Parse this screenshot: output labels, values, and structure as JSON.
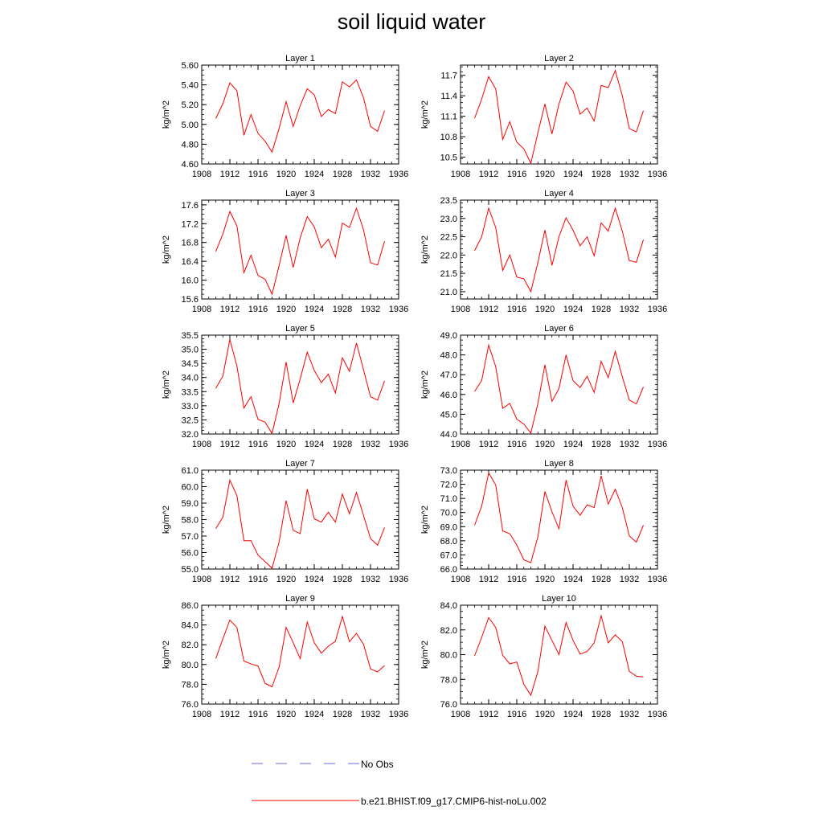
{
  "title": "soil liquid water",
  "chart_data": [
    {
      "type": "line",
      "title": "Layer 1",
      "ylabel": "kg/m^2",
      "xlim": [
        1908,
        1936
      ],
      "ylim": [
        4.6,
        5.6
      ],
      "xticks": [
        1908,
        1912,
        1916,
        1920,
        1924,
        1928,
        1932,
        1936
      ],
      "yticks": [
        "4.60",
        "4.80",
        "5.00",
        "5.20",
        "5.40",
        "5.60"
      ],
      "x": [
        1910,
        1911,
        1912,
        1913,
        1914,
        1915,
        1916,
        1917,
        1918,
        1919,
        1920,
        1921,
        1922,
        1923,
        1924,
        1925,
        1926,
        1927,
        1928,
        1929,
        1930,
        1931,
        1932,
        1933,
        1934
      ],
      "series": [
        {
          "name": "b.e21.BHIST.f09_g17.CMIP6-hist-noLu.002",
          "values": [
            5.06,
            5.21,
            5.42,
            5.34,
            4.89,
            5.1,
            4.91,
            4.83,
            4.72,
            4.96,
            5.23,
            4.98,
            5.19,
            5.36,
            5.3,
            5.08,
            5.15,
            5.11,
            5.43,
            5.38,
            5.45,
            5.27,
            4.98,
            4.93,
            5.14
          ]
        }
      ]
    },
    {
      "type": "line",
      "title": "Layer 2",
      "ylabel": "kg/m^2",
      "xlim": [
        1908,
        1936
      ],
      "ylim": [
        10.4,
        11.85
      ],
      "xticks": [
        1908,
        1912,
        1916,
        1920,
        1924,
        1928,
        1932,
        1936
      ],
      "yticks": [
        "10.5",
        "10.8",
        "11.1",
        "11.4",
        "11.7"
      ],
      "x": [
        1910,
        1911,
        1912,
        1913,
        1914,
        1915,
        1916,
        1917,
        1918,
        1919,
        1920,
        1921,
        1922,
        1923,
        1924,
        1925,
        1926,
        1927,
        1928,
        1929,
        1930,
        1931,
        1932,
        1933,
        1934
      ],
      "series": [
        {
          "name": "b.e21.BHIST.f09_g17.CMIP6-hist-noLu.002",
          "values": [
            11.07,
            11.35,
            11.68,
            11.5,
            10.76,
            11.02,
            10.72,
            10.62,
            10.41,
            10.86,
            11.28,
            10.84,
            11.28,
            11.6,
            11.47,
            11.13,
            11.22,
            11.03,
            11.55,
            11.52,
            11.77,
            11.4,
            10.92,
            10.87,
            11.18
          ]
        }
      ]
    },
    {
      "type": "line",
      "title": "Layer 3",
      "ylabel": "kg/m^2",
      "xlim": [
        1908,
        1936
      ],
      "ylim": [
        15.6,
        17.7
      ],
      "xticks": [
        1908,
        1912,
        1916,
        1920,
        1924,
        1928,
        1932,
        1936
      ],
      "yticks": [
        "15.6",
        "16.0",
        "16.4",
        "16.8",
        "17.2",
        "17.6"
      ],
      "x": [
        1910,
        1911,
        1912,
        1913,
        1914,
        1915,
        1916,
        1917,
        1918,
        1919,
        1920,
        1921,
        1922,
        1923,
        1924,
        1925,
        1926,
        1927,
        1928,
        1929,
        1930,
        1931,
        1932,
        1933,
        1934
      ],
      "series": [
        {
          "name": "b.e21.BHIST.f09_g17.CMIP6-hist-noLu.002",
          "values": [
            16.61,
            16.98,
            17.46,
            17.15,
            16.16,
            16.53,
            16.1,
            16.02,
            15.7,
            16.31,
            16.95,
            16.27,
            16.9,
            17.35,
            17.13,
            16.69,
            16.87,
            16.49,
            17.21,
            17.12,
            17.53,
            17.07,
            16.37,
            16.32,
            16.83
          ]
        }
      ]
    },
    {
      "type": "line",
      "title": "Layer 4",
      "ylabel": "kg/m^2",
      "xlim": [
        1908,
        1936
      ],
      "ylim": [
        20.8,
        23.5
      ],
      "xticks": [
        1908,
        1912,
        1916,
        1920,
        1924,
        1928,
        1932,
        1936
      ],
      "yticks": [
        "21.0",
        "21.5",
        "22.0",
        "22.5",
        "23.0",
        "23.5"
      ],
      "x": [
        1910,
        1911,
        1912,
        1913,
        1914,
        1915,
        1916,
        1917,
        1918,
        1919,
        1920,
        1921,
        1922,
        1923,
        1924,
        1925,
        1926,
        1927,
        1928,
        1929,
        1930,
        1931,
        1932,
        1933,
        1934
      ],
      "series": [
        {
          "name": "b.e21.BHIST.f09_g17.CMIP6-hist-noLu.002",
          "values": [
            22.12,
            22.5,
            23.28,
            22.75,
            21.58,
            22.0,
            21.4,
            21.35,
            21.0,
            21.8,
            22.68,
            21.72,
            22.5,
            23.02,
            22.68,
            22.25,
            22.5,
            21.98,
            22.88,
            22.65,
            23.28,
            22.65,
            21.85,
            21.8,
            22.42
          ]
        }
      ]
    },
    {
      "type": "line",
      "title": "Layer 5",
      "ylabel": "kg/m^2",
      "xlim": [
        1908,
        1936
      ],
      "ylim": [
        32.0,
        35.5
      ],
      "xticks": [
        1908,
        1912,
        1916,
        1920,
        1924,
        1928,
        1932,
        1936
      ],
      "yticks": [
        "32.0",
        "32.5",
        "33.0",
        "33.5",
        "34.0",
        "34.5",
        "35.0",
        "35.5"
      ],
      "x": [
        1910,
        1911,
        1912,
        1913,
        1914,
        1915,
        1916,
        1917,
        1918,
        1919,
        1920,
        1921,
        1922,
        1923,
        1924,
        1925,
        1926,
        1927,
        1928,
        1929,
        1930,
        1931,
        1932,
        1933,
        1934
      ],
      "series": [
        {
          "name": "b.e21.BHIST.f09_g17.CMIP6-hist-noLu.002",
          "values": [
            33.62,
            34.05,
            35.35,
            34.4,
            32.92,
            33.32,
            32.52,
            32.42,
            32.02,
            33.08,
            34.55,
            33.1,
            33.95,
            34.9,
            34.25,
            33.82,
            34.12,
            33.45,
            34.7,
            34.22,
            35.22,
            34.28,
            33.32,
            33.2,
            33.88
          ]
        }
      ]
    },
    {
      "type": "line",
      "title": "Layer 6",
      "ylabel": "kg/m^2",
      "xlim": [
        1908,
        1936
      ],
      "ylim": [
        44.0,
        49.0
      ],
      "xticks": [
        1908,
        1912,
        1916,
        1920,
        1924,
        1928,
        1932,
        1936
      ],
      "yticks": [
        "44.0",
        "45.0",
        "46.0",
        "47.0",
        "48.0",
        "49.0"
      ],
      "x": [
        1910,
        1911,
        1912,
        1913,
        1914,
        1915,
        1916,
        1917,
        1918,
        1919,
        1920,
        1921,
        1922,
        1923,
        1924,
        1925,
        1926,
        1927,
        1928,
        1929,
        1930,
        1931,
        1932,
        1933,
        1934
      ],
      "series": [
        {
          "name": "b.e21.BHIST.f09_g17.CMIP6-hist-noLu.002",
          "values": [
            46.15,
            46.7,
            48.5,
            47.4,
            45.3,
            45.55,
            44.75,
            44.5,
            44.05,
            45.55,
            47.5,
            45.65,
            46.3,
            48.0,
            46.7,
            46.35,
            46.92,
            46.1,
            47.68,
            46.85,
            48.18,
            46.9,
            45.72,
            45.52,
            46.38
          ]
        }
      ]
    },
    {
      "type": "line",
      "title": "Layer 7",
      "ylabel": "kg/m^2",
      "xlim": [
        1908,
        1936
      ],
      "ylim": [
        55.0,
        61.0
      ],
      "xticks": [
        1908,
        1912,
        1916,
        1920,
        1924,
        1928,
        1932,
        1936
      ],
      "yticks": [
        "55.0",
        "56.0",
        "57.0",
        "58.0",
        "59.0",
        "60.0",
        "61.0"
      ],
      "x": [
        1910,
        1911,
        1912,
        1913,
        1914,
        1915,
        1916,
        1917,
        1918,
        1919,
        1920,
        1921,
        1922,
        1923,
        1924,
        1925,
        1926,
        1927,
        1928,
        1929,
        1930,
        1931,
        1932,
        1933,
        1934
      ],
      "series": [
        {
          "name": "b.e21.BHIST.f09_g17.CMIP6-hist-noLu.002",
          "values": [
            57.45,
            58.15,
            60.4,
            59.45,
            56.72,
            56.72,
            55.85,
            55.45,
            55.05,
            56.65,
            59.15,
            57.35,
            57.15,
            59.85,
            58.05,
            57.85,
            58.45,
            57.85,
            59.55,
            58.35,
            59.65,
            58.25,
            56.85,
            56.45,
            57.52
          ]
        }
      ]
    },
    {
      "type": "line",
      "title": "Layer 8",
      "ylabel": "kg/m^2",
      "xlim": [
        1908,
        1936
      ],
      "ylim": [
        66.0,
        73.0
      ],
      "xticks": [
        1908,
        1912,
        1916,
        1920,
        1924,
        1928,
        1932,
        1936
      ],
      "yticks": [
        "66.0",
        "67.0",
        "68.0",
        "69.0",
        "70.0",
        "71.0",
        "72.0",
        "73.0"
      ],
      "x": [
        1910,
        1911,
        1912,
        1913,
        1914,
        1915,
        1916,
        1917,
        1918,
        1919,
        1920,
        1921,
        1922,
        1923,
        1924,
        1925,
        1926,
        1927,
        1928,
        1929,
        1930,
        1931,
        1932,
        1933,
        1934
      ],
      "series": [
        {
          "name": "b.e21.BHIST.f09_g17.CMIP6-hist-noLu.002",
          "values": [
            69.1,
            70.45,
            72.8,
            71.95,
            68.7,
            68.5,
            67.7,
            66.65,
            66.45,
            68.3,
            71.5,
            70.05,
            68.85,
            72.3,
            70.45,
            69.8,
            70.55,
            70.35,
            72.6,
            70.6,
            71.65,
            70.35,
            68.35,
            67.9,
            69.1
          ]
        }
      ]
    },
    {
      "type": "line",
      "title": "Layer 9",
      "ylabel": "kg/m^2",
      "xlim": [
        1908,
        1936
      ],
      "ylim": [
        76.0,
        86.0
      ],
      "xticks": [
        1908,
        1912,
        1916,
        1920,
        1924,
        1928,
        1932,
        1936
      ],
      "yticks": [
        "76.0",
        "78.0",
        "80.0",
        "82.0",
        "84.0",
        "86.0"
      ],
      "x": [
        1910,
        1911,
        1912,
        1913,
        1914,
        1915,
        1916,
        1917,
        1918,
        1919,
        1920,
        1921,
        1922,
        1923,
        1924,
        1925,
        1926,
        1927,
        1928,
        1929,
        1930,
        1931,
        1932,
        1933,
        1934
      ],
      "series": [
        {
          "name": "b.e21.BHIST.f09_g17.CMIP6-hist-noLu.002",
          "values": [
            80.6,
            82.6,
            84.5,
            83.75,
            80.35,
            80.05,
            79.85,
            78.1,
            77.75,
            79.75,
            83.75,
            82.2,
            80.6,
            84.3,
            82.2,
            81.15,
            81.85,
            82.35,
            84.85,
            82.3,
            83.15,
            82.05,
            79.55,
            79.25,
            79.9
          ]
        }
      ]
    },
    {
      "type": "line",
      "title": "Layer 10",
      "ylabel": "kg/m^2",
      "xlim": [
        1908,
        1936
      ],
      "ylim": [
        76.0,
        84.0
      ],
      "xticks": [
        1908,
        1912,
        1916,
        1920,
        1924,
        1928,
        1932,
        1936
      ],
      "yticks": [
        "76.0",
        "78.0",
        "80.0",
        "82.0",
        "84.0"
      ],
      "x": [
        1910,
        1911,
        1912,
        1913,
        1914,
        1915,
        1916,
        1917,
        1918,
        1919,
        1920,
        1921,
        1922,
        1923,
        1924,
        1925,
        1926,
        1927,
        1928,
        1929,
        1930,
        1931,
        1932,
        1933,
        1934
      ],
      "series": [
        {
          "name": "b.e21.BHIST.f09_g17.CMIP6-hist-noLu.002",
          "values": [
            79.9,
            81.4,
            83.0,
            82.2,
            79.95,
            79.25,
            79.4,
            77.6,
            76.7,
            78.65,
            82.3,
            81.15,
            80.0,
            82.6,
            81.15,
            80.05,
            80.25,
            80.95,
            83.15,
            80.95,
            81.6,
            81.05,
            78.65,
            78.25,
            78.2
          ]
        }
      ]
    }
  ],
  "legend": {
    "position": "bottom-center",
    "entries": [
      {
        "label": "No Obs",
        "color": "#6a6ad8",
        "style": "dashed"
      },
      {
        "label": "b.e21.BHIST.f09_g17.CMIP6-hist-noLu.002",
        "color": "#ff0000",
        "style": "solid"
      }
    ]
  },
  "colors": {
    "series": "#ff0000",
    "no_obs": "#6a6ad8",
    "axis": "#000000"
  }
}
